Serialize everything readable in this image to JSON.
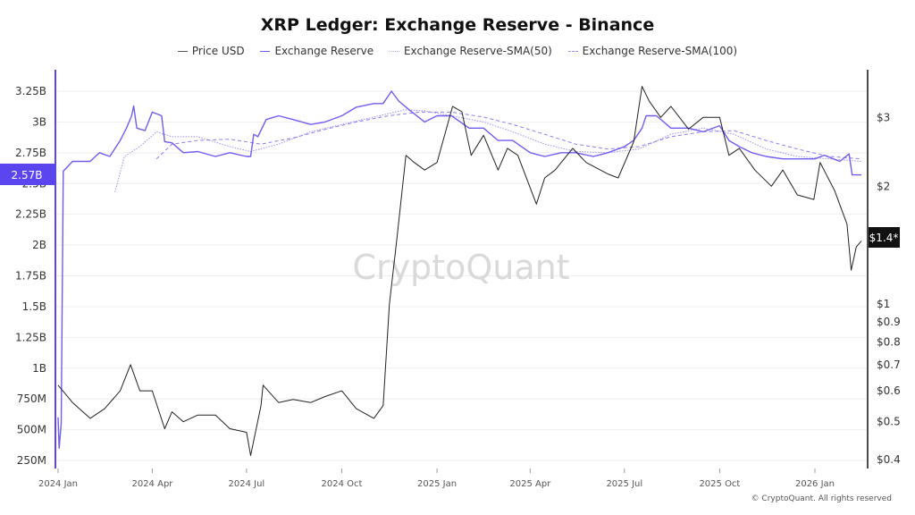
{
  "chart_data": {
    "type": "line",
    "title": "XRP Ledger: Exchange Reserve - Binance",
    "legend_position": "top",
    "grid": true,
    "watermark": "CryptoQuant",
    "footer": "© CryptoQuant. All rights reserved",
    "colors": {
      "price": "#222222",
      "reserve": "#6f5cf2",
      "sma50": "#9d91f5",
      "sma100": "#8a7cf3",
      "left_axis": "#5b45ee"
    },
    "x_ticks": [
      "2024 Jan",
      "2024 Apr",
      "2024 Jul",
      "2024 Oct",
      "2025 Jan",
      "2025 Apr",
      "2025 Jul",
      "2025 Oct",
      "2026 Jan"
    ],
    "x_tick_dates": [
      "2024-01-01",
      "2024-04-01",
      "2024-07-01",
      "2024-10-01",
      "2025-01-01",
      "2025-04-01",
      "2025-07-01",
      "2025-10-01",
      "2026-01-01"
    ],
    "left_axis": {
      "scale": "linear",
      "range": [
        0.2,
        3.4
      ],
      "ticks": [
        3.25,
        3.0,
        2.75,
        2.5,
        2.25,
        2.0,
        1.75,
        1.5,
        1.25,
        1.0,
        0.75,
        0.5,
        0.25
      ],
      "tick_labels": [
        "3.25B",
        "3B",
        "2.75B",
        "2.5B",
        "2.25B",
        "2B",
        "1.75B",
        "1.5B",
        "1.25B",
        "1B",
        "750M",
        "500M",
        "250M"
      ],
      "current_label": "2.57B"
    },
    "right_axis": {
      "scale": "log",
      "ticks": [
        3,
        2,
        1,
        0.9,
        0.8,
        0.7,
        0.6,
        0.5,
        0.4
      ],
      "tick_labels": [
        "$3",
        "$2",
        "$1",
        "$0.9",
        "$0.8",
        "$0.7",
        "$0.6",
        "$0.5",
        "$0.4"
      ],
      "current_label": "$1.4*"
    },
    "series": [
      {
        "name": "Price USD",
        "axis": "right",
        "points": [
          [
            "2024-01-01",
            0.62
          ],
          [
            "2024-01-15",
            0.56
          ],
          [
            "2024-02-01",
            0.51
          ],
          [
            "2024-02-15",
            0.54
          ],
          [
            "2024-03-01",
            0.6
          ],
          [
            "2024-03-11",
            0.7
          ],
          [
            "2024-03-20",
            0.6
          ],
          [
            "2024-04-01",
            0.6
          ],
          [
            "2024-04-13",
            0.48
          ],
          [
            "2024-04-20",
            0.53
          ],
          [
            "2024-05-01",
            0.5
          ],
          [
            "2024-05-15",
            0.52
          ],
          [
            "2024-06-01",
            0.52
          ],
          [
            "2024-06-15",
            0.48
          ],
          [
            "2024-07-01",
            0.47
          ],
          [
            "2024-07-05",
            0.41
          ],
          [
            "2024-07-15",
            0.55
          ],
          [
            "2024-07-17",
            0.62
          ],
          [
            "2024-08-01",
            0.56
          ],
          [
            "2024-08-15",
            0.57
          ],
          [
            "2024-09-01",
            0.56
          ],
          [
            "2024-09-15",
            0.58
          ],
          [
            "2024-10-01",
            0.6
          ],
          [
            "2024-10-15",
            0.54
          ],
          [
            "2024-11-01",
            0.51
          ],
          [
            "2024-11-10",
            0.55
          ],
          [
            "2024-11-16",
            1.0
          ],
          [
            "2024-11-23",
            1.45
          ],
          [
            "2024-12-02",
            2.4
          ],
          [
            "2024-12-10",
            2.3
          ],
          [
            "2024-12-20",
            2.2
          ],
          [
            "2025-01-01",
            2.3
          ],
          [
            "2025-01-16",
            3.2
          ],
          [
            "2025-01-25",
            3.1
          ],
          [
            "2025-02-03",
            2.4
          ],
          [
            "2025-02-15",
            2.7
          ],
          [
            "2025-03-01",
            2.2
          ],
          [
            "2025-03-10",
            2.5
          ],
          [
            "2025-03-20",
            2.4
          ],
          [
            "2025-04-07",
            1.8
          ],
          [
            "2025-04-15",
            2.1
          ],
          [
            "2025-04-25",
            2.2
          ],
          [
            "2025-05-12",
            2.5
          ],
          [
            "2025-05-25",
            2.3
          ],
          [
            "2025-06-15",
            2.15
          ],
          [
            "2025-06-25",
            2.1
          ],
          [
            "2025-07-10",
            2.6
          ],
          [
            "2025-07-18",
            3.6
          ],
          [
            "2025-07-25",
            3.3
          ],
          [
            "2025-08-05",
            3.0
          ],
          [
            "2025-08-15",
            3.2
          ],
          [
            "2025-09-01",
            2.8
          ],
          [
            "2025-09-15",
            3.0
          ],
          [
            "2025-10-01",
            3.0
          ],
          [
            "2025-10-10",
            2.4
          ],
          [
            "2025-10-20",
            2.5
          ],
          [
            "2025-11-04",
            2.2
          ],
          [
            "2025-11-20",
            2.0
          ],
          [
            "2025-12-01",
            2.2
          ],
          [
            "2025-12-15",
            1.9
          ],
          [
            "2025-12-31",
            1.85
          ],
          [
            "2026-01-06",
            2.3
          ],
          [
            "2026-01-20",
            1.95
          ],
          [
            "2026-02-01",
            1.6
          ],
          [
            "2026-02-05",
            1.22
          ],
          [
            "2026-02-10",
            1.4
          ],
          [
            "2026-02-15",
            1.45
          ]
        ]
      },
      {
        "name": "Exchange Reserve",
        "axis": "left",
        "points": [
          [
            "2024-01-01",
            0.6
          ],
          [
            "2024-01-02",
            0.35
          ],
          [
            "2024-01-04",
            0.55
          ],
          [
            "2024-01-06",
            2.6
          ],
          [
            "2024-01-15",
            2.68
          ],
          [
            "2024-02-01",
            2.68
          ],
          [
            "2024-02-10",
            2.75
          ],
          [
            "2024-02-20",
            2.72
          ],
          [
            "2024-03-01",
            2.85
          ],
          [
            "2024-03-07",
            2.95
          ],
          [
            "2024-03-12",
            3.05
          ],
          [
            "2024-03-14",
            3.13
          ],
          [
            "2024-03-17",
            2.95
          ],
          [
            "2024-03-25",
            2.93
          ],
          [
            "2024-04-01",
            3.08
          ],
          [
            "2024-04-10",
            3.05
          ],
          [
            "2024-04-13",
            2.84
          ],
          [
            "2024-04-20",
            2.83
          ],
          [
            "2024-05-01",
            2.75
          ],
          [
            "2024-05-15",
            2.76
          ],
          [
            "2024-06-01",
            2.72
          ],
          [
            "2024-06-15",
            2.75
          ],
          [
            "2024-07-01",
            2.72
          ],
          [
            "2024-07-05",
            2.72
          ],
          [
            "2024-07-08",
            2.9
          ],
          [
            "2024-07-12",
            2.88
          ],
          [
            "2024-07-20",
            3.02
          ],
          [
            "2024-08-01",
            3.05
          ],
          [
            "2024-08-15",
            3.02
          ],
          [
            "2024-09-01",
            2.98
          ],
          [
            "2024-09-15",
            3.0
          ],
          [
            "2024-10-01",
            3.05
          ],
          [
            "2024-10-15",
            3.12
          ],
          [
            "2024-11-01",
            3.15
          ],
          [
            "2024-11-10",
            3.15
          ],
          [
            "2024-11-18",
            3.25
          ],
          [
            "2024-11-25",
            3.17
          ],
          [
            "2024-12-05",
            3.1
          ],
          [
            "2024-12-20",
            3.0
          ],
          [
            "2025-01-01",
            3.05
          ],
          [
            "2025-01-15",
            3.05
          ],
          [
            "2025-02-01",
            2.95
          ],
          [
            "2025-02-15",
            2.95
          ],
          [
            "2025-03-01",
            2.85
          ],
          [
            "2025-03-15",
            2.85
          ],
          [
            "2025-04-01",
            2.75
          ],
          [
            "2025-04-15",
            2.72
          ],
          [
            "2025-05-01",
            2.75
          ],
          [
            "2025-05-15",
            2.75
          ],
          [
            "2025-06-01",
            2.72
          ],
          [
            "2025-06-15",
            2.75
          ],
          [
            "2025-07-01",
            2.8
          ],
          [
            "2025-07-10",
            2.85
          ],
          [
            "2025-07-18",
            2.95
          ],
          [
            "2025-07-22",
            3.05
          ],
          [
            "2025-08-01",
            3.05
          ],
          [
            "2025-08-15",
            2.95
          ],
          [
            "2025-09-01",
            2.95
          ],
          [
            "2025-09-15",
            2.92
          ],
          [
            "2025-10-01",
            2.97
          ],
          [
            "2025-10-10",
            2.85
          ],
          [
            "2025-10-20",
            2.8
          ],
          [
            "2025-11-01",
            2.75
          ],
          [
            "2025-11-15",
            2.72
          ],
          [
            "2025-12-01",
            2.7
          ],
          [
            "2025-12-15",
            2.7
          ],
          [
            "2026-01-01",
            2.7
          ],
          [
            "2026-01-10",
            2.73
          ],
          [
            "2026-01-25",
            2.68
          ],
          [
            "2026-02-03",
            2.74
          ],
          [
            "2026-02-06",
            2.57
          ],
          [
            "2026-02-15",
            2.57
          ]
        ]
      },
      {
        "name": "Exchange Reserve-SMA(50)",
        "axis": "left",
        "points": [
          [
            "2024-02-25",
            2.43
          ],
          [
            "2024-03-05",
            2.72
          ],
          [
            "2024-03-20",
            2.8
          ],
          [
            "2024-04-05",
            2.92
          ],
          [
            "2024-04-20",
            2.88
          ],
          [
            "2024-05-15",
            2.88
          ],
          [
            "2024-06-15",
            2.8
          ],
          [
            "2024-07-05",
            2.76
          ],
          [
            "2024-08-01",
            2.82
          ],
          [
            "2024-09-01",
            2.92
          ],
          [
            "2024-10-01",
            2.98
          ],
          [
            "2024-11-01",
            3.04
          ],
          [
            "2024-12-01",
            3.1
          ],
          [
            "2024-12-20",
            3.09
          ],
          [
            "2025-01-15",
            3.05
          ],
          [
            "2025-02-15",
            3.0
          ],
          [
            "2025-03-15",
            2.92
          ],
          [
            "2025-04-15",
            2.82
          ],
          [
            "2025-05-15",
            2.76
          ],
          [
            "2025-06-15",
            2.75
          ],
          [
            "2025-07-15",
            2.78
          ],
          [
            "2025-08-15",
            2.9
          ],
          [
            "2025-09-15",
            2.95
          ],
          [
            "2025-10-15",
            2.9
          ],
          [
            "2025-11-15",
            2.78
          ],
          [
            "2025-12-15",
            2.72
          ],
          [
            "2026-01-15",
            2.7
          ],
          [
            "2026-02-15",
            2.68
          ]
        ]
      },
      {
        "name": "Exchange Reserve-SMA(100)",
        "axis": "left",
        "points": [
          [
            "2024-04-05",
            2.7
          ],
          [
            "2024-04-20",
            2.82
          ],
          [
            "2024-05-15",
            2.85
          ],
          [
            "2024-06-15",
            2.86
          ],
          [
            "2024-07-15",
            2.82
          ],
          [
            "2024-08-15",
            2.87
          ],
          [
            "2024-09-15",
            2.94
          ],
          [
            "2024-10-15",
            3.0
          ],
          [
            "2024-11-15",
            3.05
          ],
          [
            "2024-12-15",
            3.08
          ],
          [
            "2025-01-15",
            3.08
          ],
          [
            "2025-02-15",
            3.04
          ],
          [
            "2025-03-15",
            2.98
          ],
          [
            "2025-04-15",
            2.9
          ],
          [
            "2025-05-15",
            2.82
          ],
          [
            "2025-06-15",
            2.78
          ],
          [
            "2025-07-15",
            2.8
          ],
          [
            "2025-08-15",
            2.88
          ],
          [
            "2025-09-15",
            2.92
          ],
          [
            "2025-10-15",
            2.93
          ],
          [
            "2025-11-15",
            2.85
          ],
          [
            "2025-12-15",
            2.78
          ],
          [
            "2026-01-15",
            2.72
          ],
          [
            "2026-02-15",
            2.7
          ]
        ]
      }
    ]
  }
}
